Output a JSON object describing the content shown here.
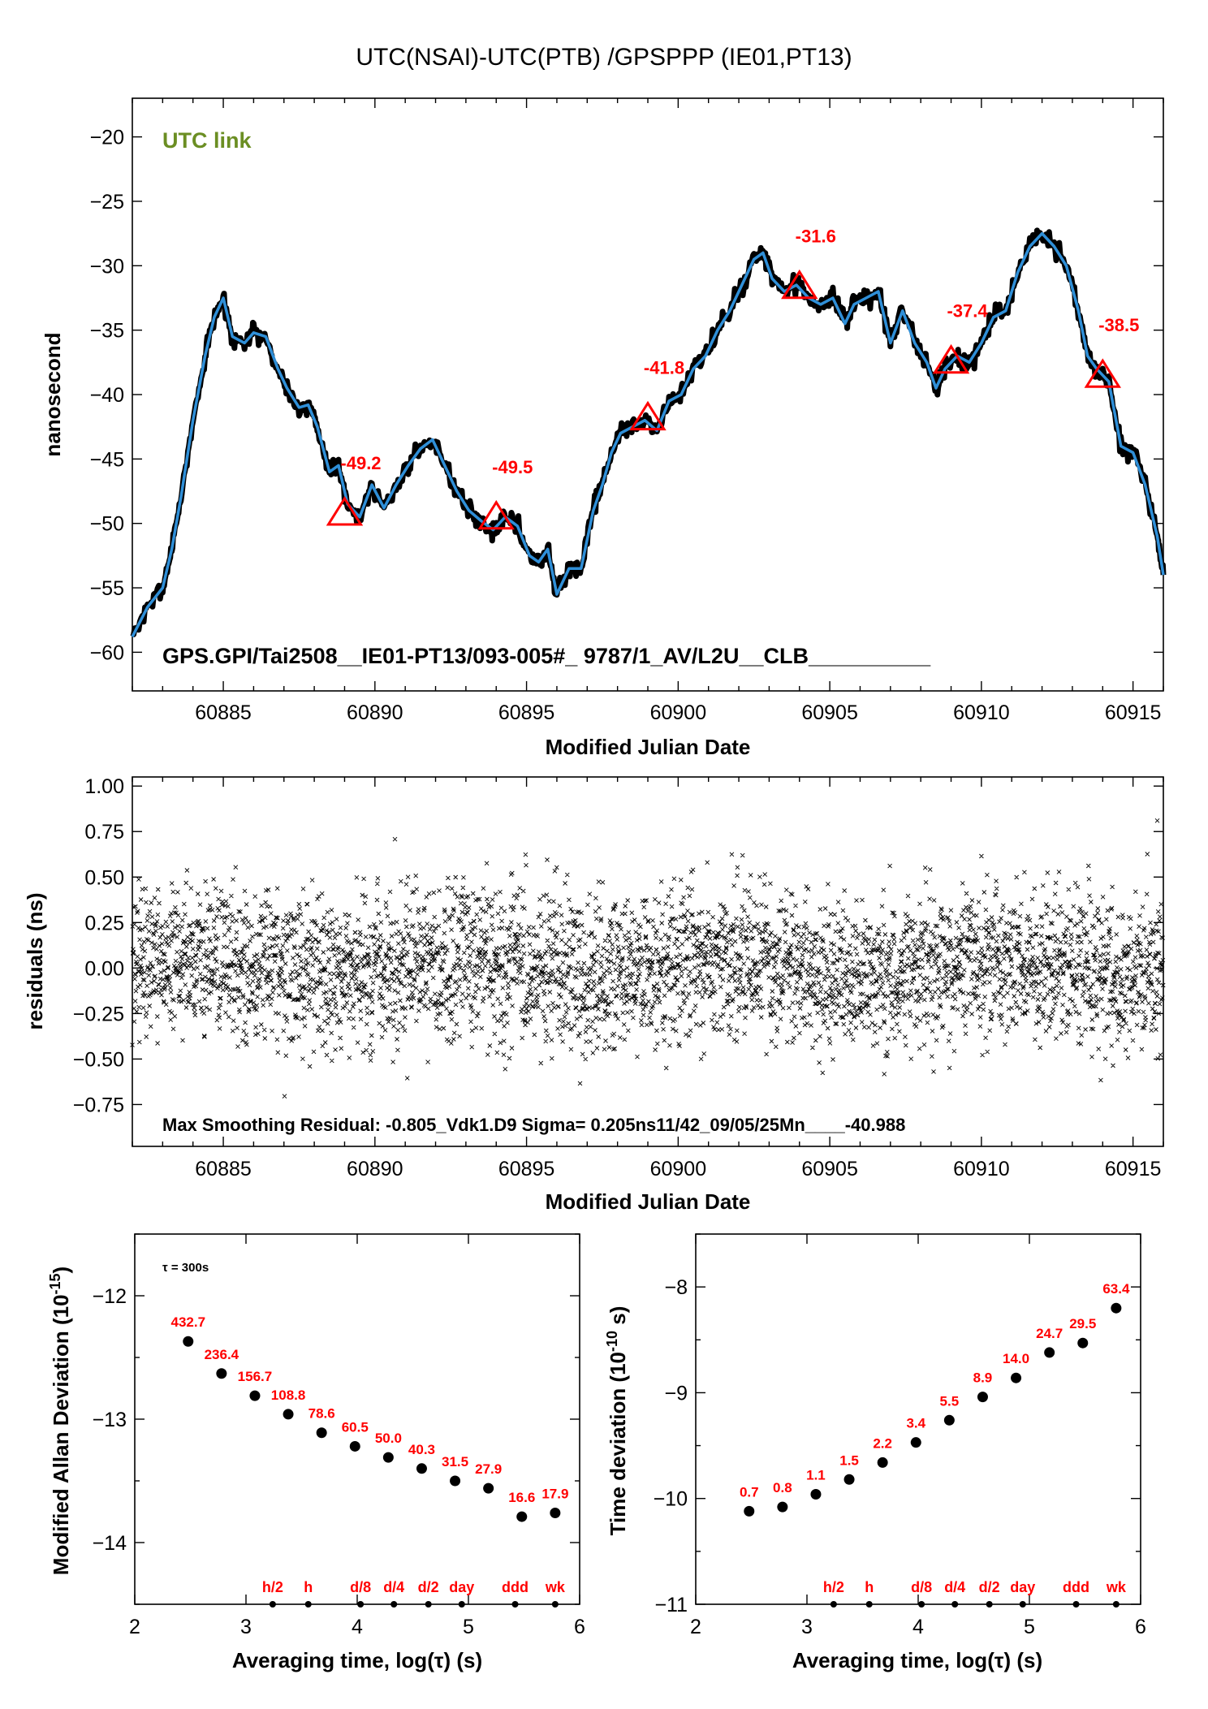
{
  "title": "UTC(NSAI)-UTC(PTB)  /GPSPPP  (IE01,PT13)",
  "colors": {
    "accent": "#2f8fd8",
    "marker": "#ff0000",
    "link_label": "#6b8e23",
    "points": "#000000"
  },
  "chart_data": [
    {
      "type": "line",
      "panel": "link",
      "link_label": "UTC link",
      "footer": "GPS.GPI/Tai2508__IE01-PT13/093-005#_  9787/1_AV/L2U__CLB__________",
      "xlabel": "Modified Julian Date",
      "ylabel": "nanosecond",
      "xlim": [
        60882,
        60916
      ],
      "ylim": [
        -63,
        -17
      ],
      "xticks": [
        60885,
        60890,
        60895,
        60900,
        60905,
        60910,
        60915
      ],
      "yticks": [
        -60,
        -55,
        -50,
        -45,
        -40,
        -35,
        -30,
        -25,
        -20
      ],
      "series": [
        {
          "x": [
            60882.0,
            60882.5,
            60883.0,
            60883.3,
            60883.6,
            60884.0,
            60884.4,
            60884.7,
            60885.0,
            60885.3,
            60885.7,
            60886.0,
            60886.4,
            60886.8,
            60887.1,
            60887.5,
            60887.8,
            60888.1,
            60888.5,
            60888.8,
            60889.1,
            60889.5,
            60889.9,
            60890.3,
            60890.7,
            60891.1,
            60891.5,
            60891.9,
            60892.3,
            60892.7,
            60893.1,
            60893.5,
            60893.9,
            60894.3,
            60894.7,
            60895.1,
            60895.4,
            60895.7,
            60896.0,
            60896.4,
            60896.8,
            60897.2,
            60897.5,
            60897.8,
            60898.1,
            60898.5,
            60898.9,
            60899.3,
            60899.7,
            60900.1,
            60900.5,
            60900.9,
            60901.3,
            60901.7,
            60902.1,
            60902.5,
            60902.8,
            60903.1,
            60903.5,
            60903.9,
            60904.3,
            60904.7,
            60905.1,
            60905.5,
            60905.8,
            60906.2,
            60906.6,
            60907.0,
            60907.4,
            60907.8,
            60908.2,
            60908.5,
            60908.8,
            60909.2,
            60909.6,
            60910.0,
            60910.4,
            60910.8,
            60911.2,
            60911.6,
            60912.0,
            60912.4,
            60912.8,
            60913.2,
            60913.5,
            60913.8,
            60914.2,
            60914.6,
            60915.0,
            60915.4,
            60915.8,
            60916.0
          ],
          "y": [
            -58.8,
            -56.5,
            -55.0,
            -52.0,
            -48.0,
            -42.0,
            -37.0,
            -34.0,
            -32.5,
            -35.5,
            -36.0,
            -35.2,
            -35.5,
            -38.0,
            -39.5,
            -41.0,
            -40.8,
            -42.5,
            -46.0,
            -45.5,
            -48.5,
            -49.5,
            -47.0,
            -48.8,
            -47.0,
            -45.5,
            -44.2,
            -43.5,
            -45.5,
            -47.5,
            -49.0,
            -49.8,
            -50.5,
            -49.5,
            -50.2,
            -52.5,
            -53.0,
            -52.0,
            -55.5,
            -53.5,
            -53.5,
            -49.0,
            -47.0,
            -44.5,
            -43.0,
            -42.5,
            -42.0,
            -42.8,
            -40.5,
            -40.0,
            -38.0,
            -37.0,
            -35.0,
            -33.5,
            -31.5,
            -29.5,
            -29.0,
            -31.0,
            -32.0,
            -31.5,
            -32.5,
            -33.0,
            -32.5,
            -34.5,
            -33.0,
            -32.5,
            -32.0,
            -36.0,
            -33.5,
            -36.0,
            -37.5,
            -39.5,
            -38.0,
            -37.0,
            -37.5,
            -36.0,
            -34.0,
            -33.5,
            -30.5,
            -28.5,
            -27.5,
            -28.5,
            -30.0,
            -33.5,
            -37.0,
            -38.0,
            -39.0,
            -44.0,
            -44.5,
            -47.0,
            -51.0,
            -54.0
          ]
        }
      ],
      "markers": [
        {
          "x": 60889,
          "y": -49.2,
          "label": "-49.2"
        },
        {
          "x": 60894,
          "y": -49.5,
          "label": "-49.5"
        },
        {
          "x": 60899,
          "y": -41.8,
          "label": "-41.8"
        },
        {
          "x": 60904,
          "y": -31.6,
          "label": "-31.6"
        },
        {
          "x": 60909,
          "y": -37.4,
          "label": "-37.4"
        },
        {
          "x": 60914,
          "y": -38.5,
          "label": "-38.5"
        }
      ]
    },
    {
      "type": "scatter",
      "panel": "residuals",
      "footer": "Max Smoothing Residual: -0.805_Vdk1.D9  Sigma= 0.205ns11/42_09/05/25Mn____-40.988",
      "xlabel": "Modified Julian Date",
      "ylabel": "residuals (ns)",
      "xlim": [
        60882,
        60916
      ],
      "ylim": [
        -0.98,
        1.05
      ],
      "xticks": [
        60885,
        60890,
        60895,
        60900,
        60905,
        60910,
        60915
      ],
      "yticks": [
        -0.75,
        -0.5,
        -0.25,
        0.0,
        0.25,
        0.5,
        0.75,
        1.0
      ],
      "ytick_labels": [
        "−0.75",
        "−0.50",
        "−0.25",
        "0.00",
        "0.25",
        "0.50",
        "0.75",
        "1.00"
      ],
      "sigma": 0.205,
      "max_residual": 0.81
    },
    {
      "type": "scatter",
      "panel": "mdev",
      "annotation": "τ = 300s",
      "xlabel": "Averaging time, log(τ) (s)",
      "ylabel": "Modified Allan Deviation (10",
      "ylabel_exp": "-15",
      "xlim": [
        2,
        6
      ],
      "ylim": [
        -14.5,
        -11.5
      ],
      "xticks": [
        2,
        3,
        4,
        5,
        6
      ],
      "yticks": [
        -14,
        -13,
        -12
      ],
      "x": [
        2.48,
        2.78,
        3.08,
        3.38,
        3.68,
        3.98,
        4.28,
        4.58,
        4.88,
        5.18,
        5.48,
        5.78
      ],
      "y": [
        -12.37,
        -12.63,
        -12.81,
        -12.96,
        -13.11,
        -13.22,
        -13.31,
        -13.4,
        -13.5,
        -13.56,
        -13.79,
        -13.76
      ],
      "labels": [
        "432.7",
        "236.4",
        "156.7",
        "108.8",
        "78.6",
        "60.5",
        "50.0",
        "40.3",
        "31.5",
        "27.9",
        "16.6",
        "17.9"
      ],
      "timescale_marks": [
        {
          "x": 3.24,
          "label": "h/2"
        },
        {
          "x": 3.56,
          "label": "h"
        },
        {
          "x": 4.03,
          "label": "d/8"
        },
        {
          "x": 4.33,
          "label": "d/4"
        },
        {
          "x": 4.64,
          "label": "d/2"
        },
        {
          "x": 4.94,
          "label": "day"
        },
        {
          "x": 5.42,
          "label": "ddd"
        },
        {
          "x": 5.78,
          "label": "wk"
        }
      ]
    },
    {
      "type": "scatter",
      "panel": "tdev",
      "xlabel": "Averaging time, log(τ) (s)",
      "ylabel": "Time deviation (10",
      "ylabel_exp": "-10",
      "xlim": [
        2,
        6
      ],
      "ylim": [
        -11,
        -7.5
      ],
      "xticks": [
        2,
        3,
        4,
        5,
        6
      ],
      "yticks": [
        -11,
        -10,
        -9,
        -8
      ],
      "x": [
        2.48,
        2.78,
        3.08,
        3.38,
        3.68,
        3.98,
        4.28,
        4.58,
        4.88,
        5.18,
        5.48,
        5.78
      ],
      "y": [
        -10.12,
        -10.08,
        -9.96,
        -9.82,
        -9.66,
        -9.47,
        -9.26,
        -9.04,
        -8.86,
        -8.62,
        -8.53,
        -8.2
      ],
      "labels": [
        "0.7",
        "0.8",
        "1.1",
        "1.5",
        "2.2",
        "3.4",
        "5.5",
        "8.9",
        "14.0",
        "24.7",
        "29.5",
        "63.4"
      ],
      "timescale_marks": [
        {
          "x": 3.24,
          "label": "h/2"
        },
        {
          "x": 3.56,
          "label": "h"
        },
        {
          "x": 4.03,
          "label": "d/8"
        },
        {
          "x": 4.33,
          "label": "d/4"
        },
        {
          "x": 4.64,
          "label": "d/2"
        },
        {
          "x": 4.94,
          "label": "day"
        },
        {
          "x": 5.42,
          "label": "ddd"
        },
        {
          "x": 5.78,
          "label": "wk"
        }
      ]
    }
  ]
}
